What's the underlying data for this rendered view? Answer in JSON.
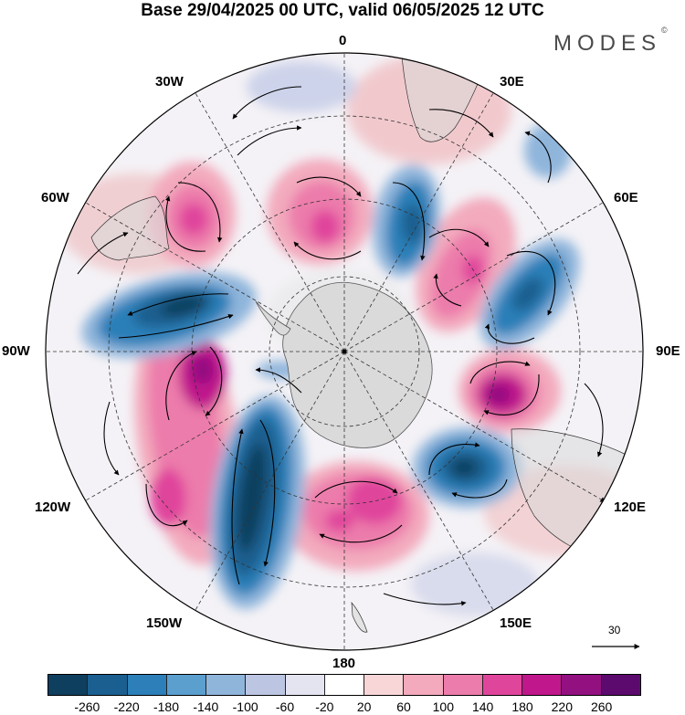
{
  "title": "Base 29/04/2025 00 UTC, valid 06/05/2025 12 UTC",
  "brand": {
    "text": "MODES",
    "mark": "©"
  },
  "longitude_labels": {
    "lon_0": "0",
    "lon_30e": "30E",
    "lon_60e": "60E",
    "lon_90e": "90E",
    "lon_120e": "120E",
    "lon_150e": "150E",
    "lon_180": "180",
    "lon_150w": "150W",
    "lon_120w": "120W",
    "lon_90w": "90W",
    "lon_60w": "60W",
    "lon_30w": "30W"
  },
  "reference_vector": {
    "label": "30"
  },
  "colorbar": {
    "colors": [
      "#0f3f5f",
      "#1a5f8f",
      "#2c7fb8",
      "#5b9fcf",
      "#8fb5db",
      "#bcc6e3",
      "#e4e4f1",
      "#ffffff",
      "#f8d6d8",
      "#f3aabd",
      "#ec7cab",
      "#e0459c",
      "#c0178c",
      "#921080",
      "#5c0a6e"
    ],
    "ticks": [
      "-260",
      "-220",
      "-180",
      "-140",
      "-100",
      "-60",
      "-20",
      "20",
      "60",
      "100",
      "140",
      "180",
      "220",
      "260"
    ]
  },
  "map": {
    "projection": "south-polar-stereographic",
    "field": "anomaly",
    "land_fill": "#d9d9d9",
    "graticule": "dashed"
  }
}
